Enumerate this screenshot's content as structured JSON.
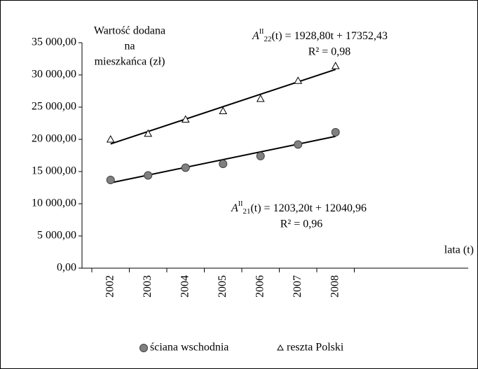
{
  "chart_data": {
    "type": "scatter",
    "y_axis_label": [
      "Wartość dodana",
      "na",
      "mieszkańca (zł)"
    ],
    "x_axis_label": "lata (t)",
    "categories": [
      "2002",
      "2003",
      "2004",
      "2005",
      "2006",
      "2007",
      "2008"
    ],
    "series": [
      {
        "name": "ściana wschodnia",
        "color": "#808080",
        "marker": "circle",
        "values": [
          13700,
          14400,
          15600,
          16200,
          17400,
          19200,
          21100
        ],
        "trendline": {
          "slope": 1203.2,
          "intercept": 12040.96
        },
        "equation": {
          "symbol": "A",
          "sup": "II",
          "sub": "21",
          "rest": "(t) = 1203,20t + 12040,96",
          "r2": "R² = 0,96"
        }
      },
      {
        "name": "reszta Polski",
        "color": "#ffffff",
        "marker": "triangle",
        "values": [
          20000,
          20900,
          23100,
          24400,
          26300,
          29100,
          31400
        ],
        "trendline": {
          "slope": 1928.8,
          "intercept": 17352.43
        },
        "equation": {
          "symbol": "A",
          "sup": "II",
          "sub": "22",
          "rest": "(t) = 1928,80t + 17352,43",
          "r2": "R² = 0,98"
        }
      }
    ],
    "ylim": [
      0,
      35000
    ],
    "yticks": [
      {
        "value": 0,
        "label": "0,00"
      },
      {
        "value": 5000,
        "label": "5 000,00"
      },
      {
        "value": 10000,
        "label": "10 000,00"
      },
      {
        "value": 15000,
        "label": "15 000,00"
      },
      {
        "value": 20000,
        "label": "20 000,00"
      },
      {
        "value": 25000,
        "label": "25 000,00"
      },
      {
        "value": 30000,
        "label": "30 000,00"
      },
      {
        "value": 35000,
        "label": "35 000,00"
      }
    ],
    "grid": false,
    "legend": "bottom"
  }
}
